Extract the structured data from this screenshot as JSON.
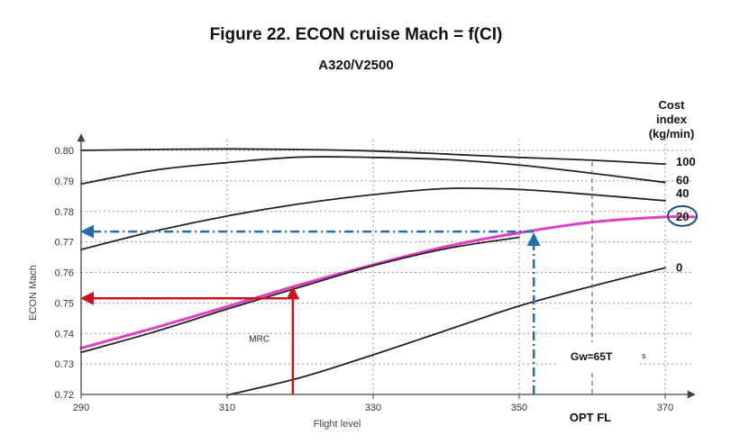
{
  "chart_data": {
    "type": "line",
    "title": "Figure 22. ECON cruise Mach = f(CI)",
    "subtitle": "A320/V2500",
    "xlabel": "Flight level",
    "ylabel": "ECON Mach",
    "xlim": [
      290,
      376
    ],
    "ylim": [
      0.72,
      0.8
    ],
    "xticks": [
      290,
      310,
      330,
      350,
      370
    ],
    "yticks": [
      "0.80",
      "0.79",
      "0.78",
      "0.77",
      "0.76",
      "0.75",
      "0.74",
      "0.73",
      "0.72"
    ],
    "legend_title": [
      "Cost",
      "index",
      "(kg/min)"
    ],
    "series": [
      {
        "name": "100",
        "x": [
          290,
          300,
          310,
          320,
          330,
          340,
          350,
          360,
          370
        ],
        "y": [
          0.8,
          0.8003,
          0.8005,
          0.8003,
          0.7998,
          0.7988,
          0.7977,
          0.7968,
          0.7955
        ],
        "color": "#222222"
      },
      {
        "name": "60",
        "x": [
          290,
          300,
          310,
          320,
          330,
          340,
          350,
          360,
          370
        ],
        "y": [
          0.789,
          0.7935,
          0.796,
          0.7978,
          0.7977,
          0.797,
          0.7952,
          0.7925,
          0.7895
        ],
        "color": "#222222"
      },
      {
        "name": "40",
        "x": [
          290,
          300,
          310,
          320,
          330,
          340,
          350,
          360,
          370
        ],
        "y": [
          0.7675,
          0.7735,
          0.7785,
          0.7825,
          0.7855,
          0.7875,
          0.7872,
          0.7855,
          0.7835
        ],
        "color": "#222222"
      },
      {
        "name": "20",
        "x": [
          290,
          300,
          310,
          320,
          330,
          340,
          350,
          360,
          370,
          374
        ],
        "y": [
          0.7352,
          0.7418,
          0.7488,
          0.756,
          0.7625,
          0.7685,
          0.773,
          0.7765,
          0.7782,
          0.7782
        ],
        "color": "#e040c0"
      },
      {
        "name": "0",
        "x": [
          310,
          320,
          330,
          340,
          350,
          360,
          370
        ],
        "y": [
          0.7198,
          0.7255,
          0.733,
          0.741,
          0.749,
          0.7555,
          0.7615
        ],
        "color": "#222222"
      },
      {
        "name": "",
        "x": [
          290,
          300,
          310,
          320,
          330,
          340,
          350
        ],
        "y": [
          0.7338,
          0.7405,
          0.748,
          0.7552,
          0.7622,
          0.7678,
          0.7715
        ],
        "color": "#222222"
      },
      {
        "name": "MRC",
        "x": [
          310,
          320,
          330,
          340,
          350,
          360,
          370
        ],
        "y": [
          0.7198,
          0.7255,
          0.733,
          0.741,
          0.749,
          0.7555,
          0.7615
        ],
        "color": "#222222"
      }
    ],
    "annotations": {
      "mrc_label": "MRC",
      "opt_fl_label": "OPT FL",
      "opt_fl_x": 360,
      "weight_label": "Gw=65T",
      "weight_suffix": "s",
      "highlighted_ci": "20",
      "blue_arrow": {
        "x": 352,
        "y": 0.7734,
        "color": "#1f6fb0"
      },
      "red_arrow": {
        "x": 319,
        "y": 0.7558,
        "y_read": 0.7515,
        "color": "#d01020"
      }
    }
  }
}
